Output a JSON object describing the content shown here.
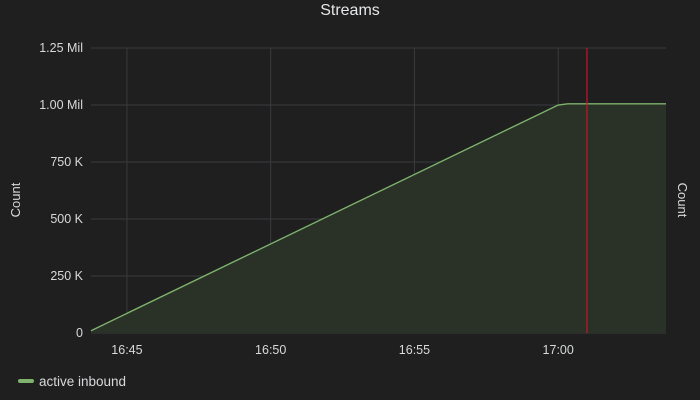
{
  "colors": {
    "background": "#1f1f20",
    "grid": "#3a3b3d",
    "series_line": "#7eb26d",
    "series_fill": "#2a3127",
    "marker_line": "#c4162a",
    "text": "#d8d9da"
  },
  "chart_data": {
    "type": "area",
    "title": "Streams",
    "ylabel": "Count",
    "ylabel_right": "Count",
    "xlabel": "",
    "x_range": [
      "16:43:45",
      "17:03:45"
    ],
    "ylim": [
      0,
      1250000
    ],
    "x_ticks": [
      {
        "time": "16:45",
        "label": "16:45"
      },
      {
        "time": "16:50",
        "label": "16:50"
      },
      {
        "time": "16:55",
        "label": "16:55"
      },
      {
        "time": "17:00",
        "label": "17:00"
      }
    ],
    "y_ticks": [
      {
        "value": 0,
        "label": "0"
      },
      {
        "value": 250000,
        "label": "250 K"
      },
      {
        "value": 500000,
        "label": "500 K"
      },
      {
        "value": 750000,
        "label": "750 K"
      },
      {
        "value": 1000000,
        "label": "1.00 Mil"
      },
      {
        "value": 1250000,
        "label": "1.25 Mil"
      }
    ],
    "grid": true,
    "legend_position": "bottom-left",
    "series": [
      {
        "name": "active inbound",
        "color": "#7eb26d",
        "points": [
          {
            "x": "16:43:45",
            "y": 10000
          },
          {
            "x": "17:00:00",
            "y": 1000000
          },
          {
            "x": "17:00:20",
            "y": 1005000
          },
          {
            "x": "17:03:45",
            "y": 1005000
          }
        ]
      }
    ],
    "annotation_marker": {
      "x": "17:01:00",
      "color": "#c4162a"
    }
  }
}
